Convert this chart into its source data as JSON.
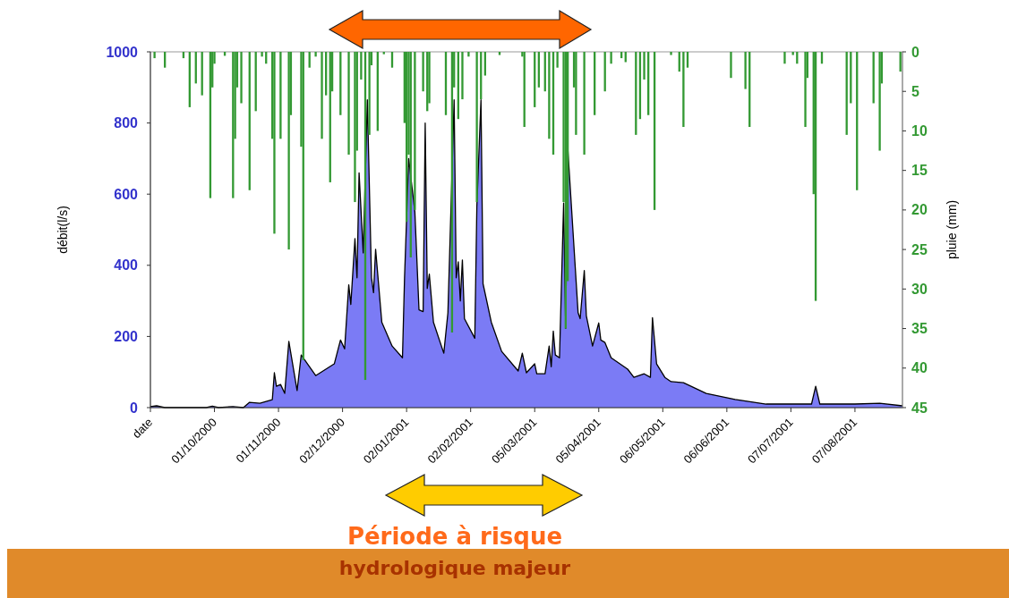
{
  "chart_data": {
    "type": "area",
    "ylabel": "débit(l/s)",
    "y2label": "pluie (mm)",
    "xlim": [
      "2000-08-31",
      "2001-08-30"
    ],
    "xticks": [
      {
        "value": "2000-08-31",
        "label": "date"
      },
      {
        "value": "2000-10-01",
        "label": "01/10/2000"
      },
      {
        "value": "2000-11-01",
        "label": "01/11/2000"
      },
      {
        "value": "2000-12-02",
        "label": "02/12/2000"
      },
      {
        "value": "2001-01-02",
        "label": "02/01/2001"
      },
      {
        "value": "2001-02-02",
        "label": "02/02/2001"
      },
      {
        "value": "2001-03-05",
        "label": "05/03/2001"
      },
      {
        "value": "2001-04-05",
        "label": "05/04/2001"
      },
      {
        "value": "2001-05-06",
        "label": "06/05/2001"
      },
      {
        "value": "2001-06-06",
        "label": "06/06/2001"
      },
      {
        "value": "2001-07-07",
        "label": "07/07/2001"
      },
      {
        "value": "2001-08-07",
        "label": "07/08/2001"
      }
    ],
    "ylim": [
      0,
      1000
    ],
    "yticks": [
      0,
      200,
      400,
      600,
      800,
      1000
    ],
    "y2lim": [
      45,
      0
    ],
    "y2ticks": [
      0,
      5,
      10,
      15,
      20,
      25,
      30,
      35,
      40,
      45
    ],
    "annotations": [
      "Période à risque hydrologique majeur"
    ],
    "series": [
      {
        "color": "#7b7bf5",
        "x": [
          "2000-08-31",
          "2000-09-03",
          "2000-09-07",
          "2000-09-27",
          "2000-09-30",
          "2000-10-03",
          "2000-10-10",
          "2000-10-15",
          "2000-10-18",
          "2000-10-23",
          "2000-10-29",
          "2000-10-30",
          "2000-10-31",
          "2000-11-02",
          "2000-11-04",
          "2000-11-06",
          "2000-11-10",
          "2000-11-12",
          "2000-11-19",
          "2000-11-28",
          "2000-12-01",
          "2000-12-03",
          "2000-12-05",
          "2000-12-06",
          "2000-12-08",
          "2000-12-09",
          "2000-12-10",
          "2000-12-12",
          "2000-12-14",
          "2000-12-16",
          "2000-12-17",
          "2000-12-18",
          "2000-12-21",
          "2000-12-26",
          "2000-12-31",
          "2001-01-01",
          "2001-01-03",
          "2001-01-06",
          "2001-01-08",
          "2001-01-10",
          "2001-01-11",
          "2001-01-12",
          "2001-01-13",
          "2001-01-15",
          "2001-01-20",
          "2001-01-22",
          "2001-01-25",
          "2001-01-26",
          "2001-01-27",
          "2001-01-28",
          "2001-01-29",
          "2001-01-30",
          "2001-02-04",
          "2001-02-05",
          "2001-02-07",
          "2001-02-08",
          "2001-02-12",
          "2001-02-17",
          "2001-02-25",
          "2001-02-27",
          "2001-03-01",
          "2001-03-05",
          "2001-03-06",
          "2001-03-10",
          "2001-03-12",
          "2001-03-13",
          "2001-03-14",
          "2001-03-15",
          "2001-03-17",
          "2001-03-19",
          "2001-03-20",
          "2001-03-21",
          "2001-03-26",
          "2001-03-27",
          "2001-03-29",
          "2001-03-30",
          "2001-04-02",
          "2001-04-05",
          "2001-04-06",
          "2001-04-08",
          "2001-04-11",
          "2001-04-19",
          "2001-04-22",
          "2001-04-27",
          "2001-04-30",
          "2001-05-01",
          "2001-05-03",
          "2001-05-07",
          "2001-05-10",
          "2001-05-16",
          "2001-05-27",
          "2001-06-10",
          "2001-06-25",
          "2001-07-17",
          "2001-07-19",
          "2001-07-21",
          "2001-08-07",
          "2001-08-19",
          "2001-08-30"
        ],
        "values": [
          3,
          5,
          0,
          0,
          4,
          0,
          3,
          0,
          15,
          12,
          22,
          98,
          60,
          65,
          40,
          186,
          48,
          148,
          90,
          123,
          190,
          165,
          345,
          290,
          475,
          365,
          660,
          435,
          865,
          365,
          323,
          445,
          240,
          173,
          140,
          365,
          700,
          550,
          275,
          270,
          800,
          335,
          375,
          240,
          153,
          267,
          865,
          365,
          410,
          300,
          415,
          250,
          195,
          565,
          865,
          348,
          240,
          158,
          103,
          153,
          98,
          123,
          95,
          95,
          173,
          115,
          215,
          148,
          140,
          575,
          223,
          730,
          267,
          250,
          385,
          258,
          173,
          238,
          190,
          183,
          140,
          108,
          85,
          95,
          85,
          253,
          123,
          85,
          73,
          70,
          40,
          23,
          10,
          10,
          60,
          10,
          10,
          12,
          5
        ]
      },
      {
        "type": "bar",
        "axis": "y2",
        "color": "#339933",
        "x": [
          "2000-09-02",
          "2000-09-07",
          "2000-09-16",
          "2000-09-19",
          "2000-09-22",
          "2000-09-25",
          "2000-09-29",
          "2000-09-30",
          "2000-10-01",
          "2000-10-06",
          "2000-10-10",
          "2000-10-11",
          "2000-10-12",
          "2000-10-14",
          "2000-10-18",
          "2000-10-21",
          "2000-10-24",
          "2000-10-26",
          "2000-10-29",
          "2000-10-30",
          "2000-11-02",
          "2000-11-06",
          "2000-11-07",
          "2000-11-12",
          "2000-11-13",
          "2000-11-16",
          "2000-11-19",
          "2000-11-22",
          "2000-11-24",
          "2000-11-26",
          "2000-11-27",
          "2000-12-01",
          "2000-12-05",
          "2000-12-08",
          "2000-12-09",
          "2000-12-11",
          "2000-12-13",
          "2000-12-15",
          "2000-12-16",
          "2000-12-19",
          "2000-12-22",
          "2000-12-26",
          "2001-01-01",
          "2001-01-02",
          "2001-01-03",
          "2001-01-04",
          "2001-01-06",
          "2001-01-10",
          "2001-01-12",
          "2001-01-13",
          "2001-01-21",
          "2001-01-24",
          "2001-01-25",
          "2001-01-27",
          "2001-01-29",
          "2001-02-01",
          "2001-02-05",
          "2001-02-07",
          "2001-02-09",
          "2001-02-16",
          "2001-02-27",
          "2001-02-28",
          "2001-03-05",
          "2001-03-07",
          "2001-03-10",
          "2001-03-12",
          "2001-03-14",
          "2001-03-16",
          "2001-03-19",
          "2001-03-20",
          "2001-03-21",
          "2001-03-24",
          "2001-03-25",
          "2001-03-29",
          "2001-04-03",
          "2001-04-08",
          "2001-04-11",
          "2001-04-16",
          "2001-04-18",
          "2001-04-23",
          "2001-04-25",
          "2001-04-27",
          "2001-04-29",
          "2001-05-02",
          "2001-05-10",
          "2001-05-14",
          "2001-05-16",
          "2001-05-18",
          "2001-06-08",
          "2001-06-15",
          "2001-06-17",
          "2001-07-04",
          "2001-07-08",
          "2001-07-10",
          "2001-07-14",
          "2001-07-15",
          "2001-07-18",
          "2001-07-19",
          "2001-07-22",
          "2001-08-03",
          "2001-08-05",
          "2001-08-08",
          "2001-08-16",
          "2001-08-19",
          "2001-08-20",
          "2001-08-29"
        ],
        "values": [
          0.8,
          2,
          0.8,
          7,
          4,
          5.5,
          18.5,
          4.5,
          1.5,
          0.5,
          18.5,
          11,
          4.5,
          6.5,
          17.5,
          7.5,
          0.6,
          1.5,
          11,
          23,
          11,
          25,
          8,
          12,
          39,
          2,
          0.6,
          11,
          5.5,
          16.5,
          5,
          8,
          13,
          19,
          12.5,
          3.5,
          41.5,
          10.5,
          1.7,
          10,
          0.3,
          2,
          9,
          21.5,
          13,
          26,
          20,
          5,
          7.5,
          6.5,
          8,
          35.5,
          4.5,
          8.5,
          6,
          0.6,
          19,
          6,
          3,
          0.4,
          0.6,
          9.5,
          7,
          4.5,
          5,
          11,
          13,
          2,
          19,
          35,
          29,
          4.5,
          10.5,
          13,
          8,
          5,
          1.5,
          0.8,
          1.3,
          10.5,
          8.5,
          3.5,
          8,
          20,
          0.4,
          2.5,
          9.5,
          2,
          3.3,
          4.7,
          9.5,
          1.5,
          0.4,
          1.5,
          9.5,
          3.3,
          18,
          31.5,
          1.5,
          10.5,
          6.5,
          17.5,
          6.5,
          12.5,
          4,
          2.5
        ]
      }
    ]
  }
}
